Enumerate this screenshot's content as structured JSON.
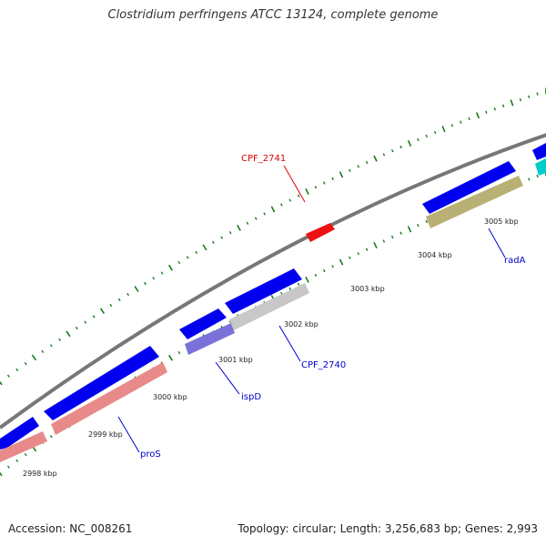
{
  "title": "Clostridium perfringens ATCC 13124, complete genome",
  "footer": {
    "accession": "Accession: NC_008261",
    "summary": "Topology: circular; Length: 3,256,683 bp; Genes: 2,993"
  },
  "colors": {
    "backbone": "#777777",
    "cds_forward": "#0000ee",
    "tick_dots": "#1a7a1a",
    "label_blue": "#0000cc",
    "label_red": "#dd0000"
  },
  "ticks": [
    {
      "label": "2998 kbp"
    },
    {
      "label": "2999 kbp"
    },
    {
      "label": "3000 kbp"
    },
    {
      "label": "3001 kbp"
    },
    {
      "label": "3002 kbp"
    },
    {
      "label": "3003 kbp"
    },
    {
      "label": "3004 kbp"
    },
    {
      "label": "3005 kbp"
    }
  ],
  "gene_labels": [
    {
      "name": "CPF_2741",
      "color": "#dd0000"
    },
    {
      "name": "radA",
      "color": "#0000cc"
    },
    {
      "name": "CPF_2740",
      "color": "#0000cc"
    },
    {
      "name": "ispD",
      "color": "#0000cc"
    },
    {
      "name": "proS",
      "color": "#0000cc"
    }
  ]
}
